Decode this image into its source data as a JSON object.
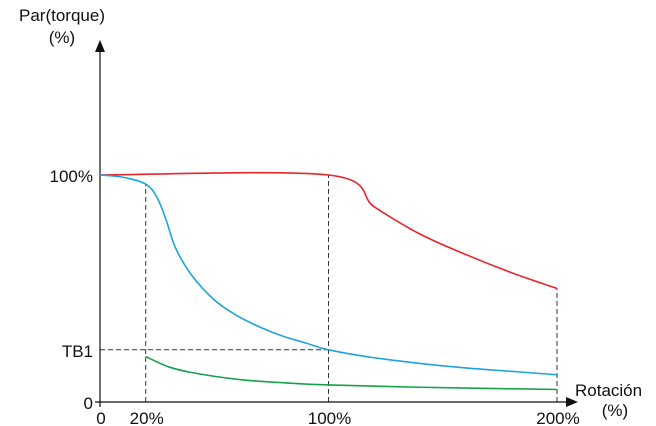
{
  "chart_data": {
    "type": "line",
    "ylabel_line1": "Par(torque)",
    "ylabel_line2": "(%)",
    "xlabel_line1": "Rotación",
    "xlabel_line2": "(%)",
    "xlim": [
      0,
      200
    ],
    "ylim": [
      0,
      100
    ],
    "x_ticks": [
      {
        "value": 0,
        "label": "0"
      },
      {
        "value": 20,
        "label": "20%"
      },
      {
        "value": 100,
        "label": "100%"
      },
      {
        "value": 200,
        "label": "200%"
      }
    ],
    "y_ticks": [
      {
        "value": 0,
        "label": "0"
      },
      {
        "value": 23,
        "label": "TB1"
      },
      {
        "value": 100,
        "label": "100%"
      }
    ],
    "guides": [
      {
        "type": "v",
        "x": 20,
        "y0": 0,
        "y1": 96
      },
      {
        "type": "v",
        "x": 100,
        "y0": 0,
        "y1": 100
      },
      {
        "type": "v",
        "x": 200,
        "y0": 0,
        "y1": 50
      },
      {
        "type": "h",
        "y": 23,
        "x0": 0,
        "x1": 100
      }
    ],
    "series": [
      {
        "color": "#e8242c",
        "points": [
          [
            0,
            100
          ],
          [
            100,
            100
          ],
          [
            120,
            86
          ],
          [
            140,
            74
          ],
          [
            160,
            65
          ],
          [
            180,
            57
          ],
          [
            200,
            50
          ]
        ]
      },
      {
        "color": "#1fa3dc",
        "points": [
          [
            0,
            100
          ],
          [
            10,
            99
          ],
          [
            20,
            96
          ],
          [
            25,
            90
          ],
          [
            29,
            80
          ],
          [
            33,
            68
          ],
          [
            40,
            56
          ],
          [
            50,
            45
          ],
          [
            60,
            38
          ],
          [
            70,
            33
          ],
          [
            80,
            29
          ],
          [
            90,
            26
          ],
          [
            100,
            23
          ],
          [
            120,
            19.5
          ],
          [
            140,
            17
          ],
          [
            160,
            15
          ],
          [
            180,
            13.5
          ],
          [
            200,
            12
          ]
        ]
      },
      {
        "color": "#13a24a",
        "points": [
          [
            20,
            20
          ],
          [
            30,
            15.5
          ],
          [
            40,
            13
          ],
          [
            60,
            10
          ],
          [
            80,
            8.5
          ],
          [
            100,
            7.5
          ],
          [
            140,
            6.5
          ],
          [
            200,
            5.5
          ]
        ]
      }
    ]
  }
}
